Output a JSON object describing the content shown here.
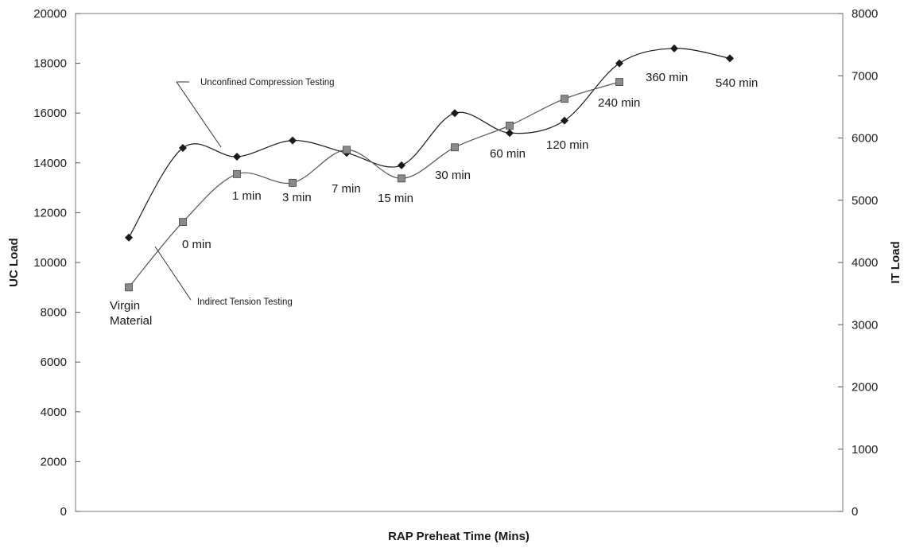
{
  "chart_data": {
    "type": "line",
    "xlabel": "RAP Preheat Time (Mins)",
    "ylabel": "UC Load",
    "y2label": "IT Load",
    "ylim": [
      0,
      20000
    ],
    "y2lim": [
      0,
      8000
    ],
    "y_ticks": [
      "0",
      "2000",
      "4000",
      "6000",
      "8000",
      "10000",
      "12000",
      "14000",
      "16000",
      "18000",
      "20000"
    ],
    "y2_ticks": [
      "0",
      "1000",
      "2000",
      "3000",
      "4000",
      "5000",
      "6000",
      "7000",
      "8000"
    ],
    "grid": false,
    "categories": [
      "Virgin Material",
      "0 min",
      "1 min",
      "3 min",
      "7 min",
      "15 min",
      "30 min",
      "60 min",
      "120 min",
      "240 min",
      "360 min",
      "540 min"
    ],
    "series": [
      {
        "name": "Unconfined Compression Testing",
        "axis": "left",
        "marker": "diamond",
        "color": "#1a1a1a",
        "values": [
          11000,
          14600,
          14250,
          14900,
          14400,
          13900,
          16000,
          15200,
          15700,
          18000,
          18600,
          18200
        ]
      },
      {
        "name": "Indirect Tension Testing",
        "axis": "right",
        "marker": "square",
        "color": "#555555",
        "values": [
          3600,
          4650,
          5420,
          5280,
          5810,
          5350,
          5850,
          6200,
          6630,
          6900,
          null,
          null
        ]
      }
    ]
  }
}
